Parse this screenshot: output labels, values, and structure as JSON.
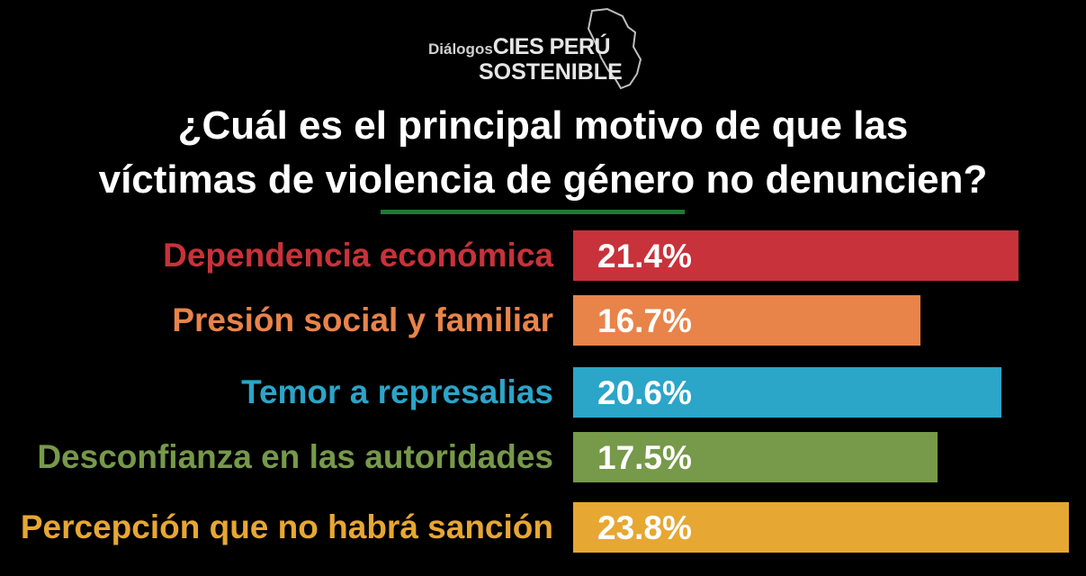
{
  "logo": {
    "line1_prefix": "Diálogos",
    "line1_main": "CIES PERÚ",
    "line2": "SOSTENIBLE"
  },
  "title": {
    "line1": "¿Cuál es el principal motivo de que las",
    "line2": "víctimas de violencia de género no denuncien?"
  },
  "colors": {
    "background": "#000000",
    "divider": "#1f7a33"
  },
  "chart_data": {
    "type": "bar",
    "orientation": "horizontal",
    "title": "¿Cuál es el principal motivo de que las víctimas de violencia de género no denuncien?",
    "categories": [
      "Dependencia económica",
      "Presión social y familiar",
      "Temor a  represalias",
      "Desconfianza en las autoridades",
      "Percepción que no habrá sanción"
    ],
    "values": [
      21.4,
      16.7,
      20.6,
      17.5,
      23.8
    ],
    "value_labels": [
      "21.4%",
      "16.7%",
      "20.6%",
      "17.5%",
      "23.8%"
    ],
    "colors": [
      "#c8323a",
      "#e8844a",
      "#2ba5c8",
      "#76994a",
      "#e6a733"
    ],
    "unit": "%",
    "grid": false,
    "legend": "none"
  }
}
